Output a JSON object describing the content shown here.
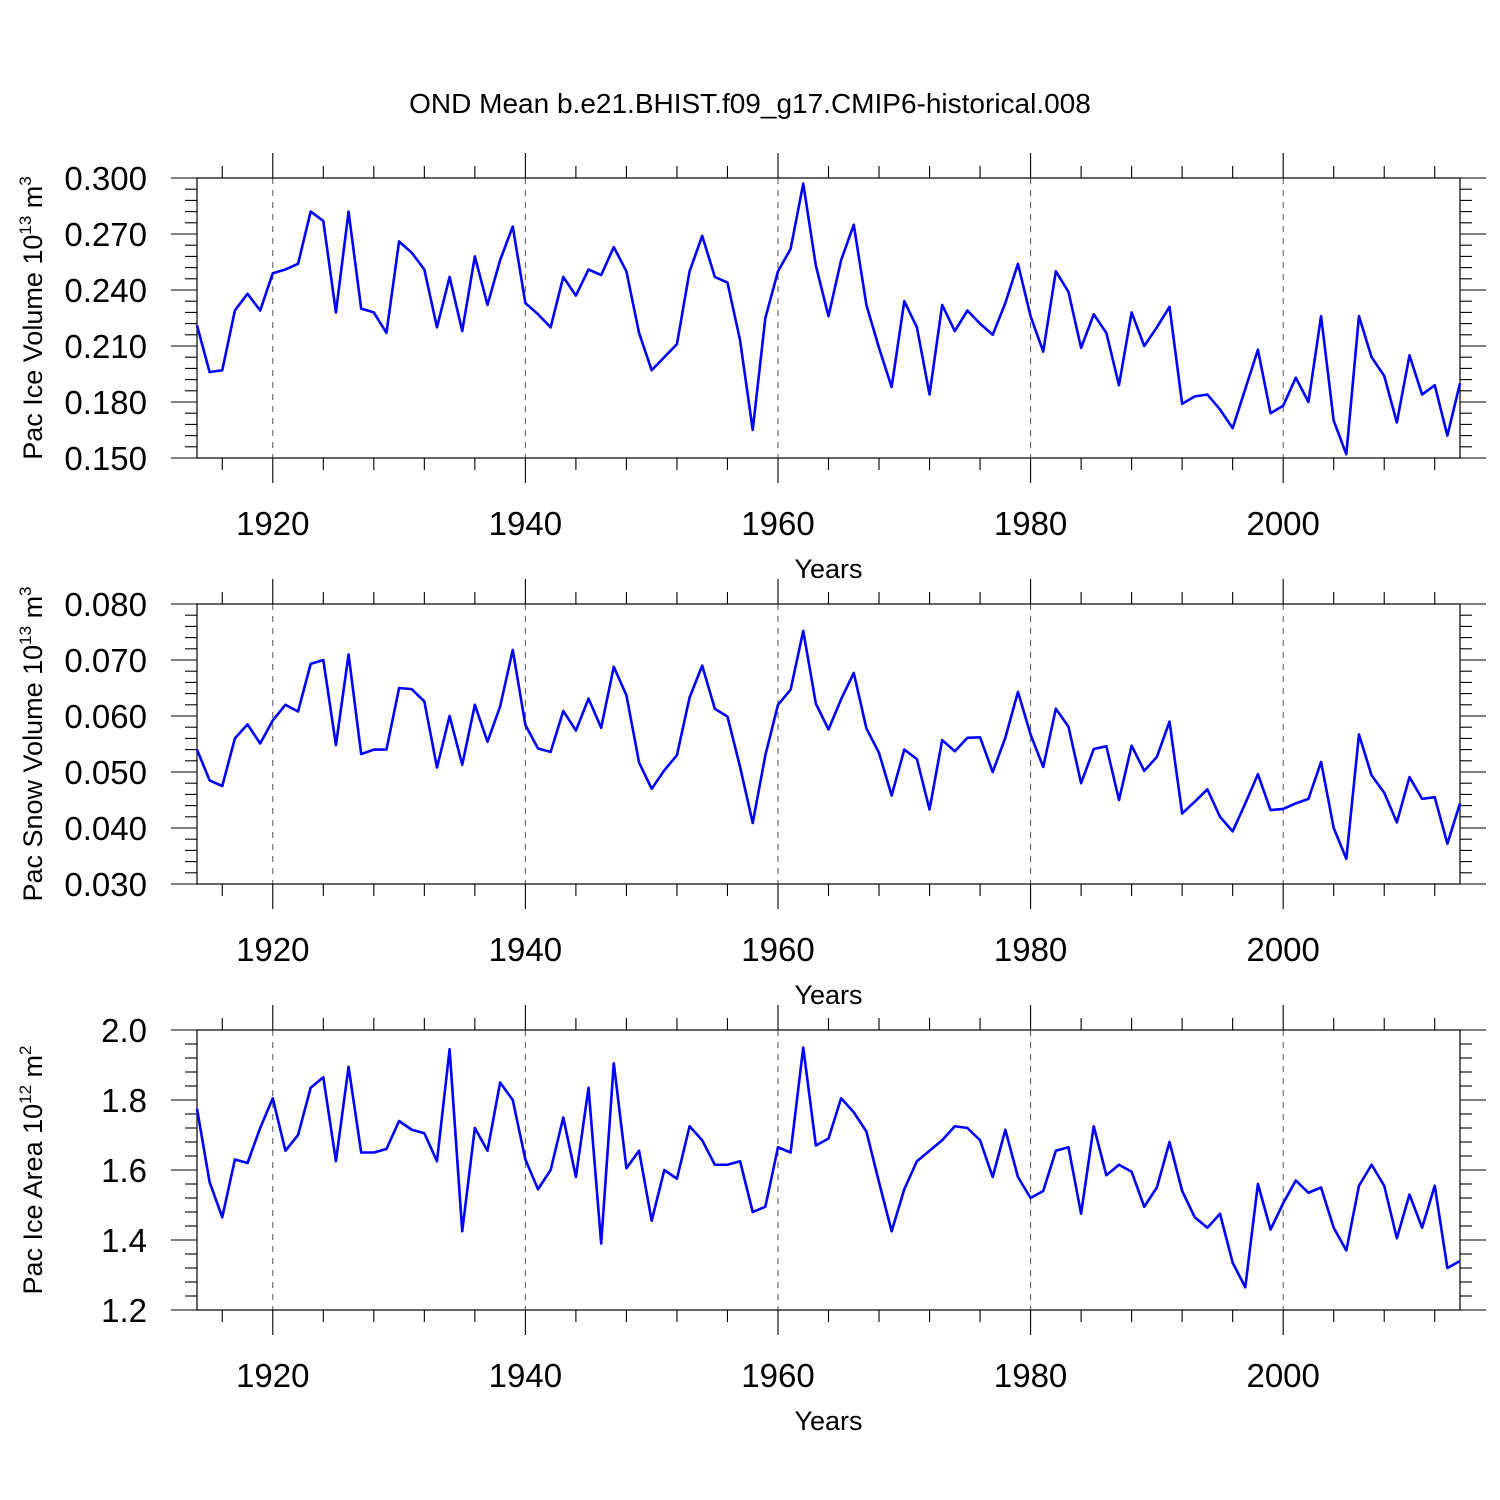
{
  "colors": {
    "line": "#0000ff",
    "axis": "#000000",
    "grid": "#555555"
  },
  "chart_data": [
    {
      "type": "line",
      "title": "OND Mean b.e21.BHIST.f09_g17.CMIP6-historical.008",
      "xlabel": "Years",
      "ylabel": "Pac Ice Volume 10",
      "ylabel_exp": "13",
      "ylabel_unit": " m",
      "ylabel_unit_exp": "3",
      "xlim": [
        1914,
        2014
      ],
      "ylim": [
        0.15,
        0.3
      ],
      "yticks": [
        0.15,
        0.18,
        0.21,
        0.24,
        0.27,
        0.3
      ],
      "ytick_labels": [
        "0.150",
        "0.180",
        "0.210",
        "0.240",
        "0.270",
        "0.300"
      ],
      "xticks": [
        1920,
        1940,
        1960,
        1980,
        2000
      ],
      "xtick_labels": [
        "1920",
        "1940",
        "1960",
        "1980",
        "2000"
      ],
      "grid": "vertical dashed at major x ticks",
      "x_start": 1914,
      "series": [
        {
          "name": "Pac Ice Volume",
          "values": [
            0.221,
            0.196,
            0.197,
            0.229,
            0.238,
            0.229,
            0.249,
            0.251,
            0.254,
            0.282,
            0.277,
            0.228,
            0.282,
            0.23,
            0.228,
            0.217,
            0.266,
            0.26,
            0.251,
            0.22,
            0.247,
            0.218,
            0.258,
            0.232,
            0.256,
            0.274,
            0.233,
            0.227,
            0.22,
            0.247,
            0.237,
            0.251,
            0.248,
            0.263,
            0.25,
            0.217,
            0.197,
            0.204,
            0.211,
            0.25,
            0.269,
            0.247,
            0.244,
            0.213,
            0.165,
            0.225,
            0.25,
            0.262,
            0.297,
            0.253,
            0.226,
            0.256,
            0.275,
            0.232,
            0.209,
            0.188,
            0.234,
            0.22,
            0.184,
            0.232,
            0.218,
            0.229,
            0.222,
            0.216,
            0.233,
            0.254,
            0.226,
            0.207,
            0.25,
            0.239,
            0.209,
            0.227,
            0.217,
            0.189,
            0.228,
            0.21,
            0.22,
            0.231,
            0.179,
            0.183,
            0.184,
            0.176,
            0.166,
            0.187,
            0.208,
            0.174,
            0.178,
            0.193,
            0.18,
            0.226,
            0.17,
            0.152,
            0.226,
            0.204,
            0.194,
            0.169,
            0.205,
            0.184,
            0.189,
            0.162,
            0.19
          ]
        }
      ]
    },
    {
      "type": "line",
      "xlabel": "Years",
      "ylabel": "Pac Snow Volume 10",
      "ylabel_exp": "13",
      "ylabel_unit": " m",
      "ylabel_unit_exp": "3",
      "xlim": [
        1914,
        2014
      ],
      "ylim": [
        0.03,
        0.08
      ],
      "yticks": [
        0.03,
        0.04,
        0.05,
        0.06,
        0.07,
        0.08
      ],
      "ytick_labels": [
        "0.030",
        "0.040",
        "0.050",
        "0.060",
        "0.070",
        "0.080"
      ],
      "xticks": [
        1920,
        1940,
        1960,
        1980,
        2000
      ],
      "xtick_labels": [
        "1920",
        "1940",
        "1960",
        "1980",
        "2000"
      ],
      "grid": "vertical dashed at major x ticks",
      "x_start": 1914,
      "series": [
        {
          "name": "Pac Snow Volume",
          "values": [
            0.054,
            0.0485,
            0.0475,
            0.056,
            0.0585,
            0.0551,
            0.0592,
            0.062,
            0.0608,
            0.0693,
            0.07,
            0.0548,
            0.071,
            0.0532,
            0.054,
            0.054,
            0.065,
            0.0648,
            0.0626,
            0.0508,
            0.06,
            0.0513,
            0.062,
            0.0554,
            0.0617,
            0.0718,
            0.0584,
            0.0542,
            0.0536,
            0.0609,
            0.0574,
            0.0631,
            0.0579,
            0.0688,
            0.0637,
            0.0517,
            0.047,
            0.0503,
            0.053,
            0.0633,
            0.069,
            0.0613,
            0.0599,
            0.0509,
            0.0409,
            0.053,
            0.062,
            0.0647,
            0.0752,
            0.0622,
            0.0576,
            0.063,
            0.0677,
            0.0578,
            0.0534,
            0.0458,
            0.054,
            0.0523,
            0.0433,
            0.0557,
            0.0537,
            0.0561,
            0.0562,
            0.05,
            0.0561,
            0.0643,
            0.0567,
            0.0509,
            0.0613,
            0.0581,
            0.048,
            0.0541,
            0.0546,
            0.045,
            0.0547,
            0.0502,
            0.0527,
            0.059,
            0.0426,
            0.0447,
            0.0469,
            0.042,
            0.0394,
            0.0444,
            0.0496,
            0.0432,
            0.0434,
            0.0444,
            0.0452,
            0.0518,
            0.04,
            0.0345,
            0.0567,
            0.0494,
            0.0463,
            0.041,
            0.0491,
            0.0452,
            0.0455,
            0.0372,
            0.0444
          ]
        }
      ]
    },
    {
      "type": "line",
      "xlabel": "Years",
      "ylabel": "Pac Ice Area 10",
      "ylabel_exp": "12",
      "ylabel_unit": " m",
      "ylabel_unit_exp": "2",
      "xlim": [
        1914,
        2014
      ],
      "ylim": [
        1.2,
        2.0
      ],
      "yticks": [
        1.2,
        1.4,
        1.6,
        1.8,
        2.0
      ],
      "ytick_labels": [
        "1.2",
        "1.4",
        "1.6",
        "1.8",
        "2.0"
      ],
      "xticks": [
        1920,
        1940,
        1960,
        1980,
        2000
      ],
      "xtick_labels": [
        "1920",
        "1940",
        "1960",
        "1980",
        "2000"
      ],
      "grid": "vertical dashed at major x ticks",
      "x_start": 1914,
      "series": [
        {
          "name": "Pac Ice Area",
          "values": [
            1.775,
            1.565,
            1.465,
            1.63,
            1.62,
            1.72,
            1.805,
            1.655,
            1.7,
            1.835,
            1.865,
            1.625,
            1.895,
            1.65,
            1.65,
            1.66,
            1.74,
            1.715,
            1.705,
            1.625,
            1.945,
            1.425,
            1.72,
            1.655,
            1.85,
            1.8,
            1.63,
            1.545,
            1.6,
            1.75,
            1.58,
            1.835,
            1.39,
            1.905,
            1.605,
            1.655,
            1.455,
            1.6,
            1.575,
            1.725,
            1.685,
            1.615,
            1.615,
            1.625,
            1.48,
            1.495,
            1.665,
            1.65,
            1.95,
            1.67,
            1.69,
            1.805,
            1.765,
            1.71,
            1.565,
            1.425,
            1.545,
            1.625,
            1.655,
            1.685,
            1.725,
            1.72,
            1.685,
            1.58,
            1.715,
            1.58,
            1.52,
            1.54,
            1.655,
            1.665,
            1.475,
            1.725,
            1.585,
            1.615,
            1.595,
            1.495,
            1.55,
            1.68,
            1.54,
            1.465,
            1.435,
            1.475,
            1.335,
            1.265,
            1.56,
            1.43,
            1.505,
            1.57,
            1.535,
            1.55,
            1.435,
            1.37,
            1.555,
            1.615,
            1.555,
            1.405,
            1.53,
            1.435,
            1.555,
            1.32,
            1.34
          ]
        }
      ]
    }
  ]
}
